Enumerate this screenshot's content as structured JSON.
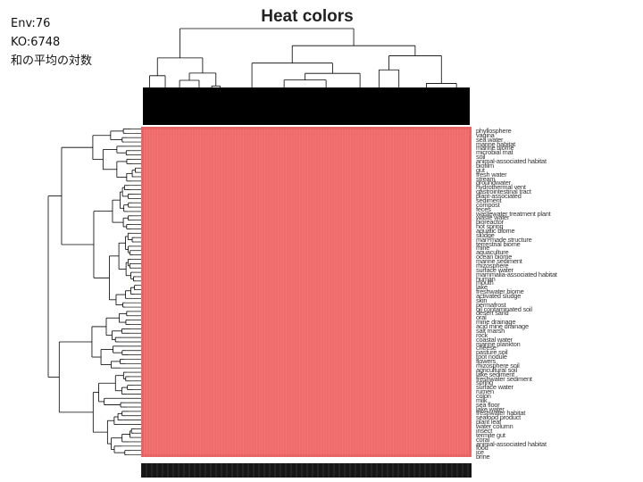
{
  "info": {
    "env": "Env:76",
    "ko": "KO:6748",
    "measure": "和の平均の対数"
  },
  "chart_data": {
    "type": "heatmap",
    "title": "Heat colors",
    "color": "#f06c6c",
    "n_rows": 76,
    "n_cols": 6748,
    "row_labels": [
      "phyllosphere",
      "vagina",
      "sea water",
      "marine habitat",
      "marine biome",
      "microbial mat",
      "soil",
      "animal-associated habitat",
      "biofilm",
      "gut",
      "fresh water",
      "stream",
      "groundwater",
      "hydrothermal vent",
      "gastrointestinal tract",
      "plant-associated",
      "sediment",
      "compost",
      "feces",
      "wastewater treatment plant",
      "waste water",
      "bioreactor",
      "hot spring",
      "aquatic biome",
      "sludge",
      "man-made structure",
      "terrestrial biome",
      "mine",
      "aquaculture",
      "ocean biome",
      "marine sediment",
      "rhizosphere",
      "surface water",
      "mammalia-associated habitat",
      "human",
      "mouth",
      "lake",
      "freshwater biome",
      "activated sludge",
      "skin",
      "permafrost",
      "oil contaminated soil",
      "desert sand",
      "oral",
      "mine drainage",
      "acid mine drainage",
      "salt marsh",
      "rock",
      "coastal water",
      "marine plankton",
      "cheese",
      "pasture soil",
      "root nodule",
      "flowers",
      "rhizosphere soil",
      "agricultural soil",
      "lake sediment",
      "freshwater sediment",
      "spring",
      "surface water",
      "rumen",
      "colon",
      "milk",
      "sea floor",
      "lake water",
      "freshwater habitat",
      "seafood product",
      "plant leaf",
      "water column",
      "insect",
      "termite gut",
      "coral",
      "animal-associated habitat",
      "food",
      "ice",
      "brine"
    ]
  }
}
